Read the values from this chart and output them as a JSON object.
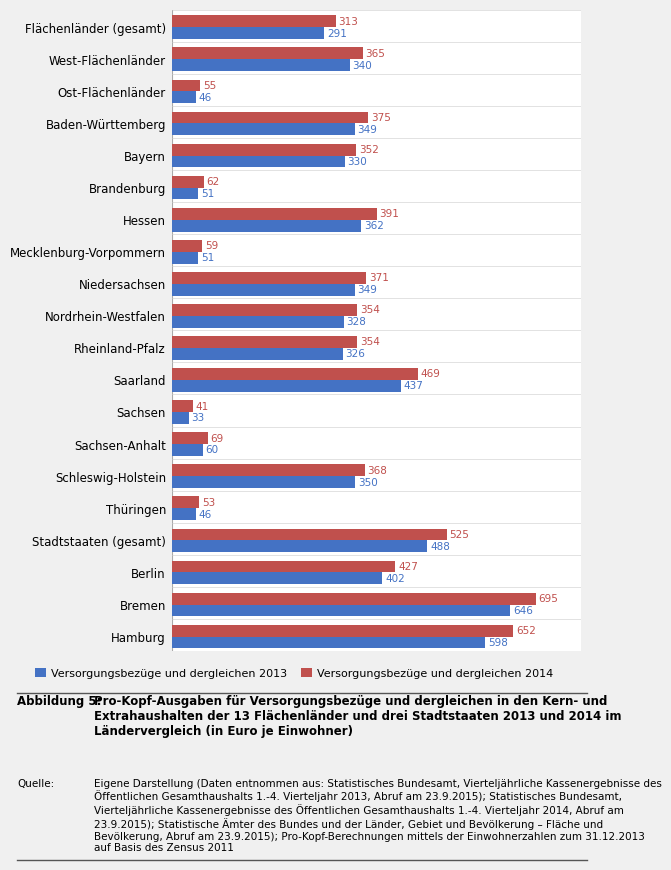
{
  "categories": [
    "Flächenländer (gesamt)",
    "West-Flächenländer",
    "Ost-Flächenländer",
    "Baden-Württemberg",
    "Bayern",
    "Brandenburg",
    "Hessen",
    "Mecklenburg-Vorpommern",
    "Niedersachsen",
    "Nordrhein-Westfalen",
    "Rheinland-Pfalz",
    "Saarland",
    "Sachsen",
    "Sachsen-Anhalt",
    "Schleswig-Holstein",
    "Thüringen",
    "Stadtstaaten (gesamt)",
    "Berlin",
    "Bremen",
    "Hamburg"
  ],
  "values_2013": [
    291,
    340,
    46,
    349,
    330,
    51,
    362,
    51,
    349,
    328,
    326,
    437,
    33,
    60,
    350,
    46,
    488,
    402,
    646,
    598
  ],
  "values_2014": [
    313,
    365,
    55,
    375,
    352,
    62,
    391,
    59,
    371,
    354,
    354,
    469,
    41,
    69,
    368,
    53,
    525,
    427,
    695,
    652
  ],
  "color_2013": "#4472C4",
  "color_2014": "#C0504D",
  "label_2013": "Versorgungsbezüge und dergleichen 2013",
  "label_2014": "Versorgungsbezüge und dergleichen 2014",
  "bar_height": 0.37,
  "background_color": "#F0F0F0",
  "plot_background": "#FFFFFF",
  "title_bold": "Pro-Kopf-Ausgaben für Versorgungsbezüge und dergleichen in den Kern- und\nExtrahaushalten der 13 Flächenländer und drei Stadtstaaten 2013 und 2014 im\nLändervergleich (in Euro je Einwohner)",
  "title_label": "Abbildung 5:",
  "source_label": "Quelle:",
  "source_text": "Eigene Darstellung (Daten entnommen aus: Statistisches Bundesamt, Vierteljährliche Kassenergebnisse des\nÖffentlichen Gesamthaushalts 1.-4. Vierteljahr 2013, Abruf am 23.9.2015); Statistisches Bundesamt,\nVierteljährliche Kassenergebnisse des Öffentlichen Gesamthaushalts 1.-4. Vierteljahr 2014, Abruf am\n23.9.2015); Statistische Ämter des Bundes und der Länder, Gebiet und Bevölkerung – Fläche und\nBevölkerung, Abruf am 23.9.2015); Pro-Kopf-Berechnungen mittels der Einwohnerzahlen zum 31.12.2013\nauf Basis des Zensus 2011"
}
